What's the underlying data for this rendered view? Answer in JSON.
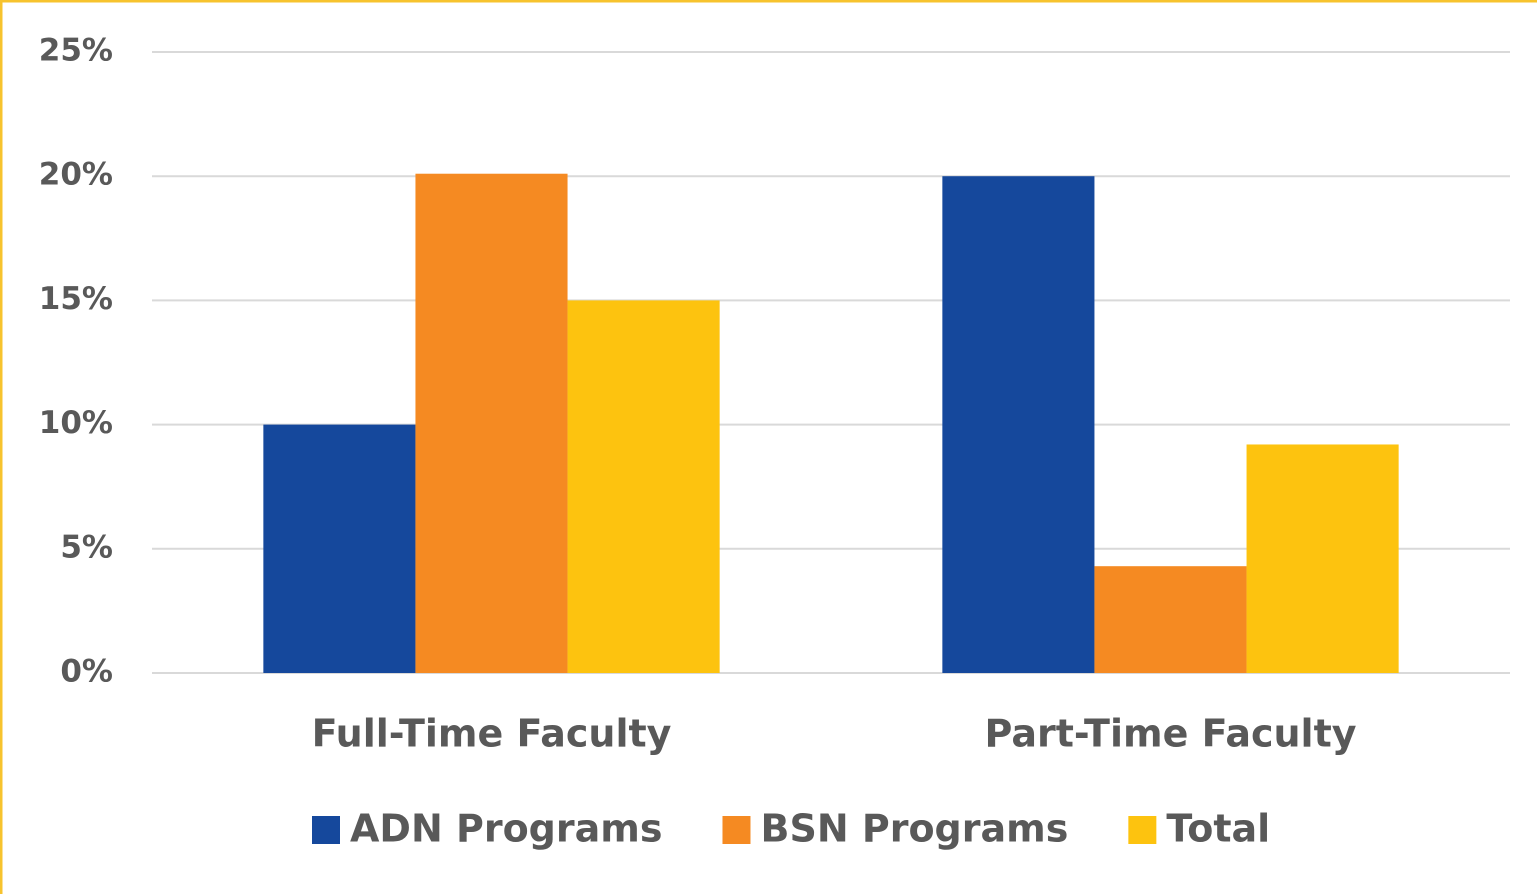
{
  "chart_data": {
    "type": "bar",
    "categories": [
      "Full-Time Faculty",
      "Part-Time Faculty"
    ],
    "series": [
      {
        "name": "ADN Programs",
        "color": "#15489c",
        "values": [
          10,
          20
        ]
      },
      {
        "name": "BSN Programs",
        "color": "#f58a22",
        "values": [
          20.1,
          4.3
        ]
      },
      {
        "name": "Total",
        "color": "#fdc30f",
        "values": [
          15,
          9.2
        ]
      }
    ],
    "ylim": [
      0,
      25
    ],
    "yticks": [
      {
        "value": 0,
        "label": "0%"
      },
      {
        "value": 5,
        "label": "5%"
      },
      {
        "value": 10,
        "label": "10%"
      },
      {
        "value": 15,
        "label": "15%"
      },
      {
        "value": 20,
        "label": "20%"
      },
      {
        "value": 25,
        "label": "25%"
      }
    ],
    "grid": true,
    "legend": "bottom"
  }
}
